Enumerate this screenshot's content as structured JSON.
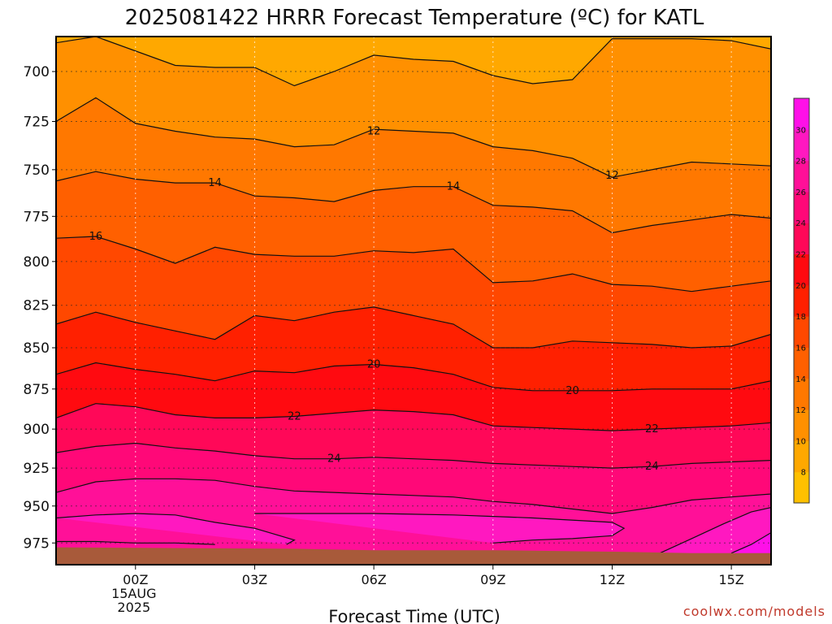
{
  "chart_data": {
    "type": "heatmap",
    "title": "2025081422 HRRR Forecast Temperature (ºC) for KATL",
    "xlabel": "Forecast Time (UTC)",
    "credit": "coolwx.com/models",
    "x_time_range_hours": [
      -2,
      16
    ],
    "x_ticks": [
      {
        "hour": 0,
        "label": "00Z",
        "sub": [
          "15AUG",
          "2025"
        ]
      },
      {
        "hour": 3,
        "label": "03Z",
        "sub": []
      },
      {
        "hour": 6,
        "label": "06Z",
        "sub": []
      },
      {
        "hour": 9,
        "label": "09Z",
        "sub": []
      },
      {
        "hour": 12,
        "label": "12Z",
        "sub": []
      },
      {
        "hour": 15,
        "label": "15Z",
        "sub": []
      }
    ],
    "y_pressure_range_hPa": [
      683,
      990
    ],
    "y_ticks": [
      700,
      725,
      750,
      775,
      800,
      825,
      850,
      875,
      900,
      925,
      950,
      975
    ],
    "grid": true,
    "colorbar": {
      "levels": [
        6,
        8,
        10,
        12,
        14,
        16,
        18,
        20,
        22,
        24,
        26,
        28,
        30,
        32
      ],
      "labels": [
        8,
        10,
        12,
        14,
        16,
        18,
        20,
        22,
        24,
        26,
        28,
        30
      ],
      "colors": [
        "#FFC000",
        "#FFA800",
        "#FF9000",
        "#FF7800",
        "#FF6000",
        "#FF4800",
        "#FF2000",
        "#FF0A10",
        "#FF0858",
        "#FF0878",
        "#FF1098",
        "#FF18C0",
        "#FF10E8"
      ]
    },
    "ground_color": "#A85A3A",
    "ground_surface_pressure_hPa": [
      {
        "h": -2,
        "p": 978
      },
      {
        "h": 4,
        "p": 979
      },
      {
        "h": 6,
        "p": 980
      },
      {
        "h": 9,
        "p": 980
      },
      {
        "h": 12,
        "p": 981
      },
      {
        "h": 14,
        "p": 982
      },
      {
        "h": 16,
        "p": 982
      }
    ],
    "isotherms": [
      {
        "temp": 10,
        "points": [
          [
            -2,
            686
          ],
          [
            -1,
            683
          ],
          [
            1,
            697
          ],
          [
            2,
            698
          ],
          [
            3,
            698
          ],
          [
            4,
            707
          ],
          [
            5,
            700
          ],
          [
            6,
            692
          ],
          [
            7,
            694
          ],
          [
            8,
            695
          ],
          [
            9,
            702
          ],
          [
            10,
            706
          ],
          [
            11,
            704
          ],
          [
            12,
            684
          ],
          [
            13,
            684
          ],
          [
            14,
            684
          ],
          [
            15,
            685
          ],
          [
            16,
            689
          ]
        ]
      },
      {
        "temp": 12,
        "points": [
          [
            -2,
            725
          ],
          [
            -1,
            713
          ],
          [
            0,
            726
          ],
          [
            1,
            730
          ],
          [
            2,
            733
          ],
          [
            3,
            734
          ],
          [
            4,
            738
          ],
          [
            5,
            737
          ],
          [
            6,
            729
          ],
          [
            7,
            730
          ],
          [
            8,
            731
          ],
          [
            9,
            738
          ],
          [
            10,
            740
          ],
          [
            11,
            744
          ],
          [
            12,
            754
          ],
          [
            13,
            750
          ],
          [
            14,
            746
          ],
          [
            15,
            747
          ],
          [
            16,
            748
          ]
        ]
      },
      {
        "temp": 14,
        "points": [
          [
            -2,
            756
          ],
          [
            -1,
            751
          ],
          [
            0,
            755
          ],
          [
            1,
            757
          ],
          [
            2,
            757
          ],
          [
            3,
            764
          ],
          [
            4,
            765
          ],
          [
            5,
            767
          ],
          [
            6,
            761
          ],
          [
            7,
            759
          ],
          [
            8,
            759
          ],
          [
            9,
            769
          ],
          [
            10,
            770
          ],
          [
            11,
            772
          ],
          [
            12,
            784
          ],
          [
            13,
            780
          ],
          [
            14,
            777
          ],
          [
            15,
            774
          ],
          [
            16,
            776
          ]
        ]
      },
      {
        "temp": 16,
        "points": [
          [
            -2,
            787
          ],
          [
            -1,
            786
          ],
          [
            0,
            793
          ],
          [
            1,
            801
          ],
          [
            2,
            792
          ],
          [
            3,
            796
          ],
          [
            4,
            797
          ],
          [
            5,
            797
          ],
          [
            6,
            794
          ],
          [
            7,
            795
          ],
          [
            8,
            793
          ],
          [
            9,
            812
          ],
          [
            10,
            811
          ],
          [
            11,
            807
          ],
          [
            12,
            813
          ],
          [
            13,
            814
          ],
          [
            14,
            817
          ],
          [
            15,
            814
          ],
          [
            16,
            811
          ]
        ]
      },
      {
        "temp": 18,
        "points": [
          [
            -2,
            836
          ],
          [
            -1,
            829
          ],
          [
            0,
            835
          ],
          [
            1,
            840
          ],
          [
            2,
            845
          ],
          [
            3,
            831
          ],
          [
            4,
            834
          ],
          [
            5,
            829
          ],
          [
            6,
            826
          ],
          [
            7,
            831
          ],
          [
            8,
            836
          ],
          [
            9,
            850
          ],
          [
            10,
            850
          ],
          [
            11,
            846
          ],
          [
            12,
            847
          ],
          [
            13,
            848
          ],
          [
            14,
            850
          ],
          [
            15,
            849
          ],
          [
            16,
            842
          ]
        ]
      },
      {
        "temp": 20,
        "points": [
          [
            -2,
            866
          ],
          [
            -1,
            859
          ],
          [
            0,
            863
          ],
          [
            1,
            866
          ],
          [
            2,
            870
          ],
          [
            3,
            864
          ],
          [
            4,
            865
          ],
          [
            5,
            861
          ],
          [
            6,
            860
          ],
          [
            7,
            862
          ],
          [
            8,
            866
          ],
          [
            9,
            874
          ],
          [
            10,
            876
          ],
          [
            11,
            876
          ],
          [
            12,
            876
          ],
          [
            13,
            875
          ],
          [
            14,
            875
          ],
          [
            15,
            875
          ],
          [
            16,
            870
          ]
        ]
      },
      {
        "temp": 22,
        "points": [
          [
            -2,
            893
          ],
          [
            -1,
            884
          ],
          [
            0,
            886
          ],
          [
            1,
            891
          ],
          [
            2,
            893
          ],
          [
            3,
            893
          ],
          [
            4,
            892
          ],
          [
            5,
            890
          ],
          [
            6,
            888
          ],
          [
            7,
            889
          ],
          [
            8,
            891
          ],
          [
            9,
            898
          ],
          [
            10,
            899
          ],
          [
            11,
            900
          ],
          [
            12,
            901
          ],
          [
            13,
            900
          ],
          [
            14,
            899
          ],
          [
            15,
            898
          ],
          [
            16,
            896
          ]
        ]
      },
      {
        "temp": 24,
        "points": [
          [
            -2,
            915
          ],
          [
            -1,
            911
          ],
          [
            0,
            909
          ],
          [
            1,
            912
          ],
          [
            2,
            914
          ],
          [
            3,
            917
          ],
          [
            4,
            919
          ],
          [
            5,
            919
          ],
          [
            6,
            918
          ],
          [
            7,
            919
          ],
          [
            8,
            920
          ],
          [
            9,
            922
          ],
          [
            10,
            923
          ],
          [
            11,
            924
          ],
          [
            12,
            925
          ],
          [
            13,
            924
          ],
          [
            14,
            922
          ],
          [
            15,
            921
          ],
          [
            16,
            920
          ]
        ]
      },
      {
        "temp": 26,
        "points": [
          [
            -2,
            941
          ],
          [
            -1,
            934
          ],
          [
            0,
            932
          ],
          [
            1,
            932
          ],
          [
            2,
            933
          ],
          [
            3,
            937
          ],
          [
            4,
            940
          ],
          [
            5,
            941
          ],
          [
            6,
            942
          ],
          [
            7,
            943
          ],
          [
            8,
            944
          ],
          [
            9,
            947
          ],
          [
            10,
            949
          ],
          [
            11,
            952
          ],
          [
            12,
            955
          ],
          [
            13,
            951
          ],
          [
            14,
            946
          ],
          [
            15,
            944
          ],
          [
            16,
            942
          ]
        ]
      },
      {
        "temp": 28,
        "points": [
          [
            -2,
            958
          ],
          [
            -1,
            956
          ],
          [
            0,
            955
          ],
          [
            1,
            956
          ],
          [
            2,
            961
          ],
          [
            3,
            965
          ],
          [
            4,
            973
          ],
          [
            3.8,
            976
          ]
        ]
      },
      {
        "temp": 28,
        "points": [
          [
            9,
            975
          ],
          [
            10,
            973
          ],
          [
            11,
            972
          ],
          [
            12,
            970
          ],
          [
            12.3,
            965
          ],
          [
            12,
            961
          ],
          [
            10,
            958
          ],
          [
            9,
            957
          ],
          [
            8,
            956
          ],
          [
            6,
            955
          ],
          [
            4,
            955
          ],
          [
            3,
            955
          ]
        ]
      },
      {
        "temp": 30,
        "points": [
          [
            -2,
            974
          ],
          [
            -1,
            974
          ],
          [
            0,
            975
          ],
          [
            1,
            975
          ],
          [
            2,
            976
          ]
        ]
      },
      {
        "temp": 28,
        "points": [
          [
            13.2,
            982
          ],
          [
            14,
            972
          ],
          [
            14.8,
            962
          ],
          [
            15.5,
            954
          ],
          [
            16,
            951
          ]
        ]
      },
      {
        "temp": 30,
        "points": [
          [
            15,
            982
          ],
          [
            15.5,
            976
          ],
          [
            16,
            968
          ]
        ]
      }
    ],
    "contour_labels": [
      {
        "h": 6,
        "p": 730,
        "text": "12"
      },
      {
        "h": 12,
        "p": 753,
        "text": "12"
      },
      {
        "h": 2,
        "p": 757,
        "text": "14"
      },
      {
        "h": 8,
        "p": 759,
        "text": "14"
      },
      {
        "h": -1,
        "p": 786,
        "text": "16"
      },
      {
        "h": 6,
        "p": 860,
        "text": "20"
      },
      {
        "h": 11,
        "p": 876,
        "text": "20"
      },
      {
        "h": 4,
        "p": 892,
        "text": "22"
      },
      {
        "h": 13,
        "p": 900,
        "text": "22"
      },
      {
        "h": 5,
        "p": 919,
        "text": "24"
      },
      {
        "h": 13,
        "p": 924,
        "text": "24"
      }
    ]
  }
}
